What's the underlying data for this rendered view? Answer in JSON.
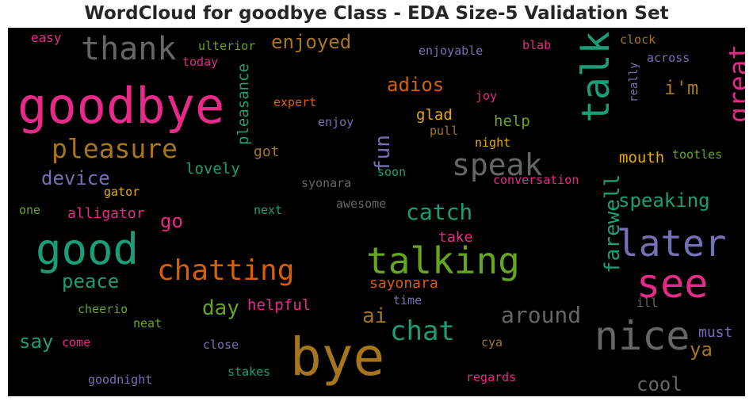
{
  "chart_data": {
    "type": "wordcloud",
    "title": "WordCloud for goodbye Class - EDA Size-5 Validation Set",
    "background": "#000000",
    "palette": {
      "teal": "#1b9e77",
      "orange": "#d95f02",
      "purple": "#7570b3",
      "pink": "#e7298a",
      "green": "#66a61e",
      "gold": "#e6ab02",
      "brown": "#a6761d",
      "gray": "#666666"
    },
    "words": [
      {
        "text": "goodbye",
        "color": "pink",
        "weight": 62
      },
      {
        "text": "bye",
        "color": "brown",
        "weight": 66
      },
      {
        "text": "good",
        "color": "teal",
        "weight": 54
      },
      {
        "text": "talking",
        "color": "green",
        "weight": 46
      },
      {
        "text": "see",
        "color": "pink",
        "weight": 50
      },
      {
        "text": "nice",
        "color": "gray",
        "weight": 50
      },
      {
        "text": "later",
        "color": "purple",
        "weight": 46
      },
      {
        "text": "talk",
        "color": "teal",
        "weight": 48
      },
      {
        "text": "thank",
        "color": "gray",
        "weight": 40
      },
      {
        "text": "chatting",
        "color": "orange",
        "weight": 36
      },
      {
        "text": "speak",
        "color": "gray",
        "weight": 38
      },
      {
        "text": "pleasure",
        "color": "brown",
        "weight": 33
      },
      {
        "text": "great",
        "color": "pink",
        "weight": 33
      },
      {
        "text": "chat",
        "color": "teal",
        "weight": 34
      },
      {
        "text": "farewell",
        "color": "teal",
        "weight": 26
      },
      {
        "text": "catch",
        "color": "teal",
        "weight": 28
      },
      {
        "text": "around",
        "color": "gray",
        "weight": 28
      },
      {
        "text": "fun",
        "color": "purple",
        "weight": 26
      },
      {
        "text": "day",
        "color": "green",
        "weight": 26
      },
      {
        "text": "ai",
        "color": "brown",
        "weight": 26
      },
      {
        "text": "enjoyed",
        "color": "brown",
        "weight": 24
      },
      {
        "text": "adios",
        "color": "orange",
        "weight": 24
      },
      {
        "text": "i'm",
        "color": "brown",
        "weight": 24
      },
      {
        "text": "device",
        "color": "purple",
        "weight": 24
      },
      {
        "text": "peace",
        "color": "teal",
        "weight": 24
      },
      {
        "text": "speaking",
        "color": "teal",
        "weight": 24
      },
      {
        "text": "go",
        "color": "pink",
        "weight": 24
      },
      {
        "text": "say",
        "color": "teal",
        "weight": 24
      },
      {
        "text": "cool",
        "color": "gray",
        "weight": 24
      },
      {
        "text": "ya",
        "color": "brown",
        "weight": 24
      },
      {
        "text": "pleasance",
        "color": "teal",
        "weight": 19
      },
      {
        "text": "glad",
        "color": "gold",
        "weight": 19
      },
      {
        "text": "help",
        "color": "green",
        "weight": 19
      },
      {
        "text": "mouth",
        "color": "gold",
        "weight": 19
      },
      {
        "text": "lovely",
        "color": "teal",
        "weight": 19
      },
      {
        "text": "alligator",
        "color": "pink",
        "weight": 18
      },
      {
        "text": "helpful",
        "color": "pink",
        "weight": 19
      },
      {
        "text": "sayonara",
        "color": "orange",
        "weight": 18
      },
      {
        "text": "take",
        "color": "pink",
        "weight": 18
      },
      {
        "text": "must",
        "color": "purple",
        "weight": 18
      },
      {
        "text": "got",
        "color": "brown",
        "weight": 18
      },
      {
        "text": "easy",
        "color": "pink",
        "weight": 16
      },
      {
        "text": "ulterior",
        "color": "green",
        "weight": 15
      },
      {
        "text": "today",
        "color": "pink",
        "weight": 15
      },
      {
        "text": "enjoyable",
        "color": "purple",
        "weight": 15
      },
      {
        "text": "blab",
        "color": "pink",
        "weight": 15
      },
      {
        "text": "clock",
        "color": "brown",
        "weight": 15
      },
      {
        "text": "across",
        "color": "purple",
        "weight": 15
      },
      {
        "text": "really",
        "color": "purple",
        "weight": 14
      },
      {
        "text": "expert",
        "color": "orange",
        "weight": 15
      },
      {
        "text": "joy",
        "color": "pink",
        "weight": 15
      },
      {
        "text": "enjoy",
        "color": "purple",
        "weight": 15
      },
      {
        "text": "pull",
        "color": "brown",
        "weight": 15
      },
      {
        "text": "night",
        "color": "gold",
        "weight": 15
      },
      {
        "text": "tootles",
        "color": "green",
        "weight": 15
      },
      {
        "text": "soon",
        "color": "teal",
        "weight": 15
      },
      {
        "text": "gator",
        "color": "gold",
        "weight": 15
      },
      {
        "text": "syonara",
        "color": "gray",
        "weight": 15
      },
      {
        "text": "conversation",
        "color": "pink",
        "weight": 15
      },
      {
        "text": "one",
        "color": "green",
        "weight": 15
      },
      {
        "text": "next",
        "color": "teal",
        "weight": 15
      },
      {
        "text": "awesome",
        "color": "gray",
        "weight": 15
      },
      {
        "text": "time",
        "color": "purple",
        "weight": 15
      },
      {
        "text": "ill",
        "color": "gray",
        "weight": 15
      },
      {
        "text": "cheerio",
        "color": "green",
        "weight": 15
      },
      {
        "text": "neat",
        "color": "green",
        "weight": 15
      },
      {
        "text": "come",
        "color": "pink",
        "weight": 15
      },
      {
        "text": "close",
        "color": "purple",
        "weight": 15
      },
      {
        "text": "cya",
        "color": "brown",
        "weight": 15
      },
      {
        "text": "goodnight",
        "color": "purple",
        "weight": 15
      },
      {
        "text": "stakes",
        "color": "teal",
        "weight": 15
      },
      {
        "text": "regards",
        "color": "pink",
        "weight": 15
      }
    ]
  }
}
